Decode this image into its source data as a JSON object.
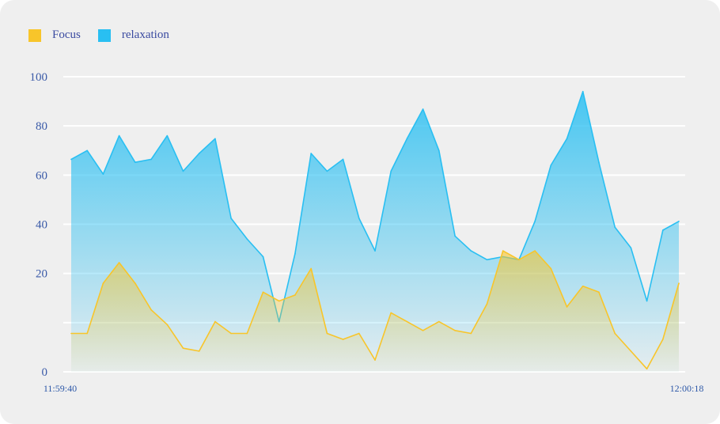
{
  "colors": {
    "focus": "#f8c52a",
    "relaxation": "#29bff2",
    "background": "#efefef",
    "grid": "#ffffff",
    "tick": "#3a5aa8"
  },
  "legend": {
    "focus_label": "Focus",
    "relaxation_label": "relaxation"
  },
  "chart_data": {
    "type": "area",
    "title": "",
    "xlabel": "",
    "ylabel": "",
    "ylim": [
      0,
      100
    ],
    "y_ticks": [
      "0",
      "",
      "20",
      "40",
      "60",
      "80",
      "100"
    ],
    "x_ticks": [
      "11:59:40",
      "12:00:18"
    ],
    "grid": true,
    "legend_position": "top-left",
    "series": [
      {
        "name": "Focus",
        "values": [
          13,
          13,
          30,
          37,
          30,
          21,
          16,
          8,
          7,
          17,
          13,
          13,
          27,
          24,
          26,
          35,
          13,
          11,
          13,
          4,
          20,
          17,
          14,
          17,
          14,
          13,
          23,
          41,
          38,
          41,
          35,
          22,
          29,
          27,
          13,
          7,
          1,
          11,
          30
        ]
      },
      {
        "name": "relaxation",
        "values": [
          72,
          75,
          67,
          80,
          71,
          72,
          80,
          68,
          74,
          79,
          52,
          45,
          39,
          17,
          40,
          74,
          68,
          72,
          52,
          41,
          68,
          79,
          89,
          75,
          46,
          41,
          38,
          39,
          38,
          51,
          70,
          79,
          95,
          71,
          49,
          42,
          24,
          48,
          51
        ]
      }
    ]
  }
}
